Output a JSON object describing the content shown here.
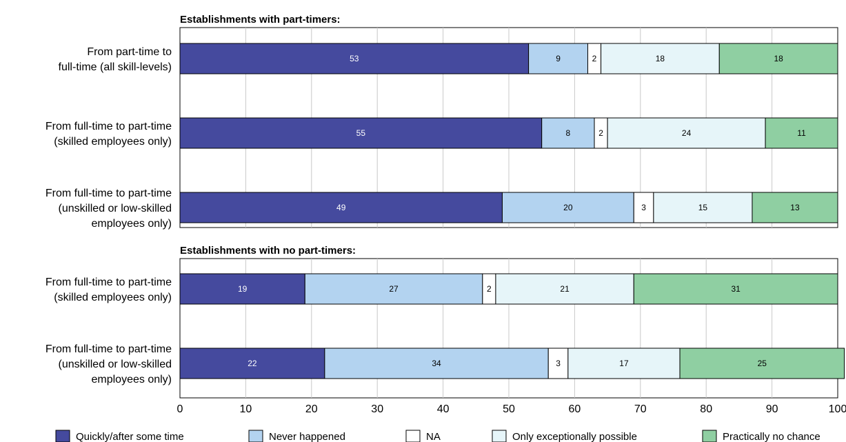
{
  "chart_data": {
    "type": "bar",
    "orientation": "horizontal",
    "stacked": true,
    "xlim": [
      0,
      100
    ],
    "xticks": [
      "0",
      "10",
      "20",
      "30",
      "40",
      "50",
      "60",
      "70",
      "80",
      "90",
      "100"
    ],
    "grid": true,
    "legend_position": "bottom",
    "series_names": [
      "Quickly/after some time",
      "Never happened",
      "NA",
      "Only exceptionally possible",
      "Practically no chance"
    ],
    "colors": [
      "#454a9e",
      "#b3d3f0",
      "#ffffff",
      "#e6f5f9",
      "#8fcfa2"
    ],
    "label_colors": [
      "#ffffff",
      "#000000",
      "#000000",
      "#000000",
      "#000000"
    ],
    "panels": [
      {
        "title": "Establishments with part-timers:",
        "categories": [
          [
            "From part-time to",
            "full-time (all skill-levels)"
          ],
          [
            "From full-time to part-time",
            "(skilled employees only)"
          ],
          [
            "From full-time to part-time",
            "(unskilled or low-skilled",
            "employees only)"
          ]
        ],
        "values": [
          [
            53,
            9,
            2,
            18,
            18
          ],
          [
            55,
            8,
            2,
            24,
            11
          ],
          [
            49,
            20,
            3,
            15,
            13
          ]
        ]
      },
      {
        "title": "Establishments with no part-timers:",
        "categories": [
          [
            "From full-time to part-time",
            "(skilled employees only)"
          ],
          [
            "From full-time to part-time",
            "(unskilled or low-skilled",
            "employees only)"
          ]
        ],
        "values": [
          [
            19,
            27,
            2,
            21,
            31
          ],
          [
            22,
            34,
            3,
            17,
            25
          ]
        ]
      }
    ]
  }
}
